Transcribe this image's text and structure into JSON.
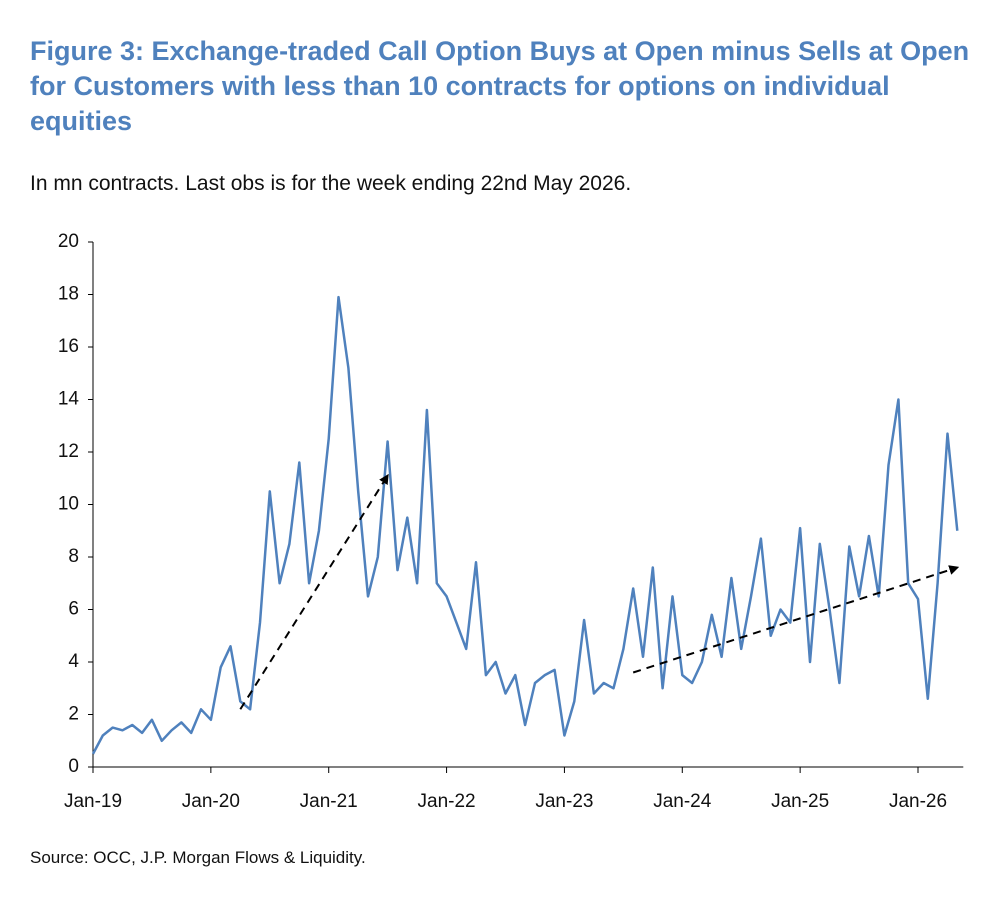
{
  "chart_data": {
    "type": "line",
    "title": "Figure 3: Exchange-traded Call Option Buys at Open minus Sells at Open for Customers with less than 10 contracts for options on individual equities",
    "subtitle": "In mn contracts. Last obs is for the week ending 22nd May 2026.",
    "source": "Source: OCC, J.P. Morgan Flows & Liquidity.",
    "x": [
      "Jan-19",
      "Feb-19",
      "Mar-19",
      "Apr-19",
      "May-19",
      "Jun-19",
      "Jul-19",
      "Aug-19",
      "Sep-19",
      "Oct-19",
      "Nov-19",
      "Dec-19",
      "Jan-20",
      "Feb-20",
      "Mar-20",
      "Apr-20",
      "May-20",
      "Jun-20",
      "Jul-20",
      "Aug-20",
      "Sep-20",
      "Oct-20",
      "Nov-20",
      "Dec-20",
      "Jan-21",
      "Feb-21",
      "Mar-21",
      "Apr-21",
      "May-21",
      "Jun-21",
      "Jul-21",
      "Aug-21",
      "Sep-21",
      "Oct-21",
      "Nov-21",
      "Dec-21",
      "Jan-22",
      "Feb-22",
      "Mar-22",
      "Apr-22",
      "May-22",
      "Jun-22",
      "Jul-22",
      "Aug-22",
      "Sep-22",
      "Oct-22",
      "Nov-22",
      "Dec-22",
      "Jan-23",
      "Feb-23",
      "Mar-23",
      "Apr-23",
      "May-23",
      "Jun-23",
      "Jul-23",
      "Aug-23",
      "Sep-23",
      "Oct-23",
      "Nov-23",
      "Dec-23",
      "Jan-24",
      "Feb-24",
      "Mar-24",
      "Apr-24",
      "May-24",
      "Jun-24",
      "Jul-24",
      "Aug-24",
      "Sep-24",
      "Oct-24",
      "Nov-24",
      "Dec-24",
      "Jan-25",
      "Feb-25",
      "Mar-25",
      "Apr-25",
      "May-25",
      "Jun-25",
      "Jul-25",
      "Aug-25",
      "Sep-25",
      "Oct-25",
      "Nov-25",
      "Dec-25",
      "Jan-26",
      "Feb-26",
      "Mar-26",
      "Apr-26",
      "May-26"
    ],
    "values": [
      0.5,
      1.2,
      1.5,
      1.4,
      1.6,
      1.3,
      1.8,
      1.0,
      1.4,
      1.7,
      1.3,
      2.2,
      1.8,
      3.8,
      4.6,
      2.5,
      2.2,
      5.5,
      10.5,
      7.0,
      8.5,
      11.6,
      7.0,
      9.0,
      12.5,
      17.9,
      15.2,
      10.5,
      6.5,
      8.0,
      12.4,
      7.5,
      9.5,
      7.0,
      13.6,
      7.0,
      6.5,
      5.5,
      4.5,
      7.8,
      3.5,
      4.0,
      2.8,
      3.5,
      1.6,
      3.2,
      3.5,
      3.7,
      1.2,
      2.5,
      5.6,
      2.8,
      3.2,
      3.0,
      4.5,
      6.8,
      4.2,
      7.6,
      3.0,
      6.5,
      3.5,
      3.2,
      4.0,
      5.8,
      4.2,
      7.2,
      4.5,
      6.5,
      8.7,
      5.0,
      6.0,
      5.5,
      9.1,
      4.0,
      8.5,
      6.0,
      3.2,
      8.4,
      6.5,
      8.8,
      6.5,
      11.5,
      14.0,
      7.0,
      6.4,
      2.6,
      7.0,
      12.7,
      9.0
    ],
    "color": "#4f81bd",
    "ylim": [
      0,
      20
    ],
    "yticks": [
      0,
      2,
      4,
      6,
      8,
      10,
      12,
      14,
      16,
      18,
      20
    ],
    "xticks": [
      "Jan-19",
      "Jan-20",
      "Jan-21",
      "Jan-22",
      "Jan-23",
      "Jan-24",
      "Jan-25",
      "Jan-26"
    ],
    "trend_arrows": [
      {
        "x": [
          "Apr-20",
          "Jul-21"
        ],
        "y": [
          2.2,
          11.1
        ]
      },
      {
        "x": [
          "Aug-23",
          "May-26"
        ],
        "y": [
          3.6,
          7.6
        ]
      }
    ]
  }
}
